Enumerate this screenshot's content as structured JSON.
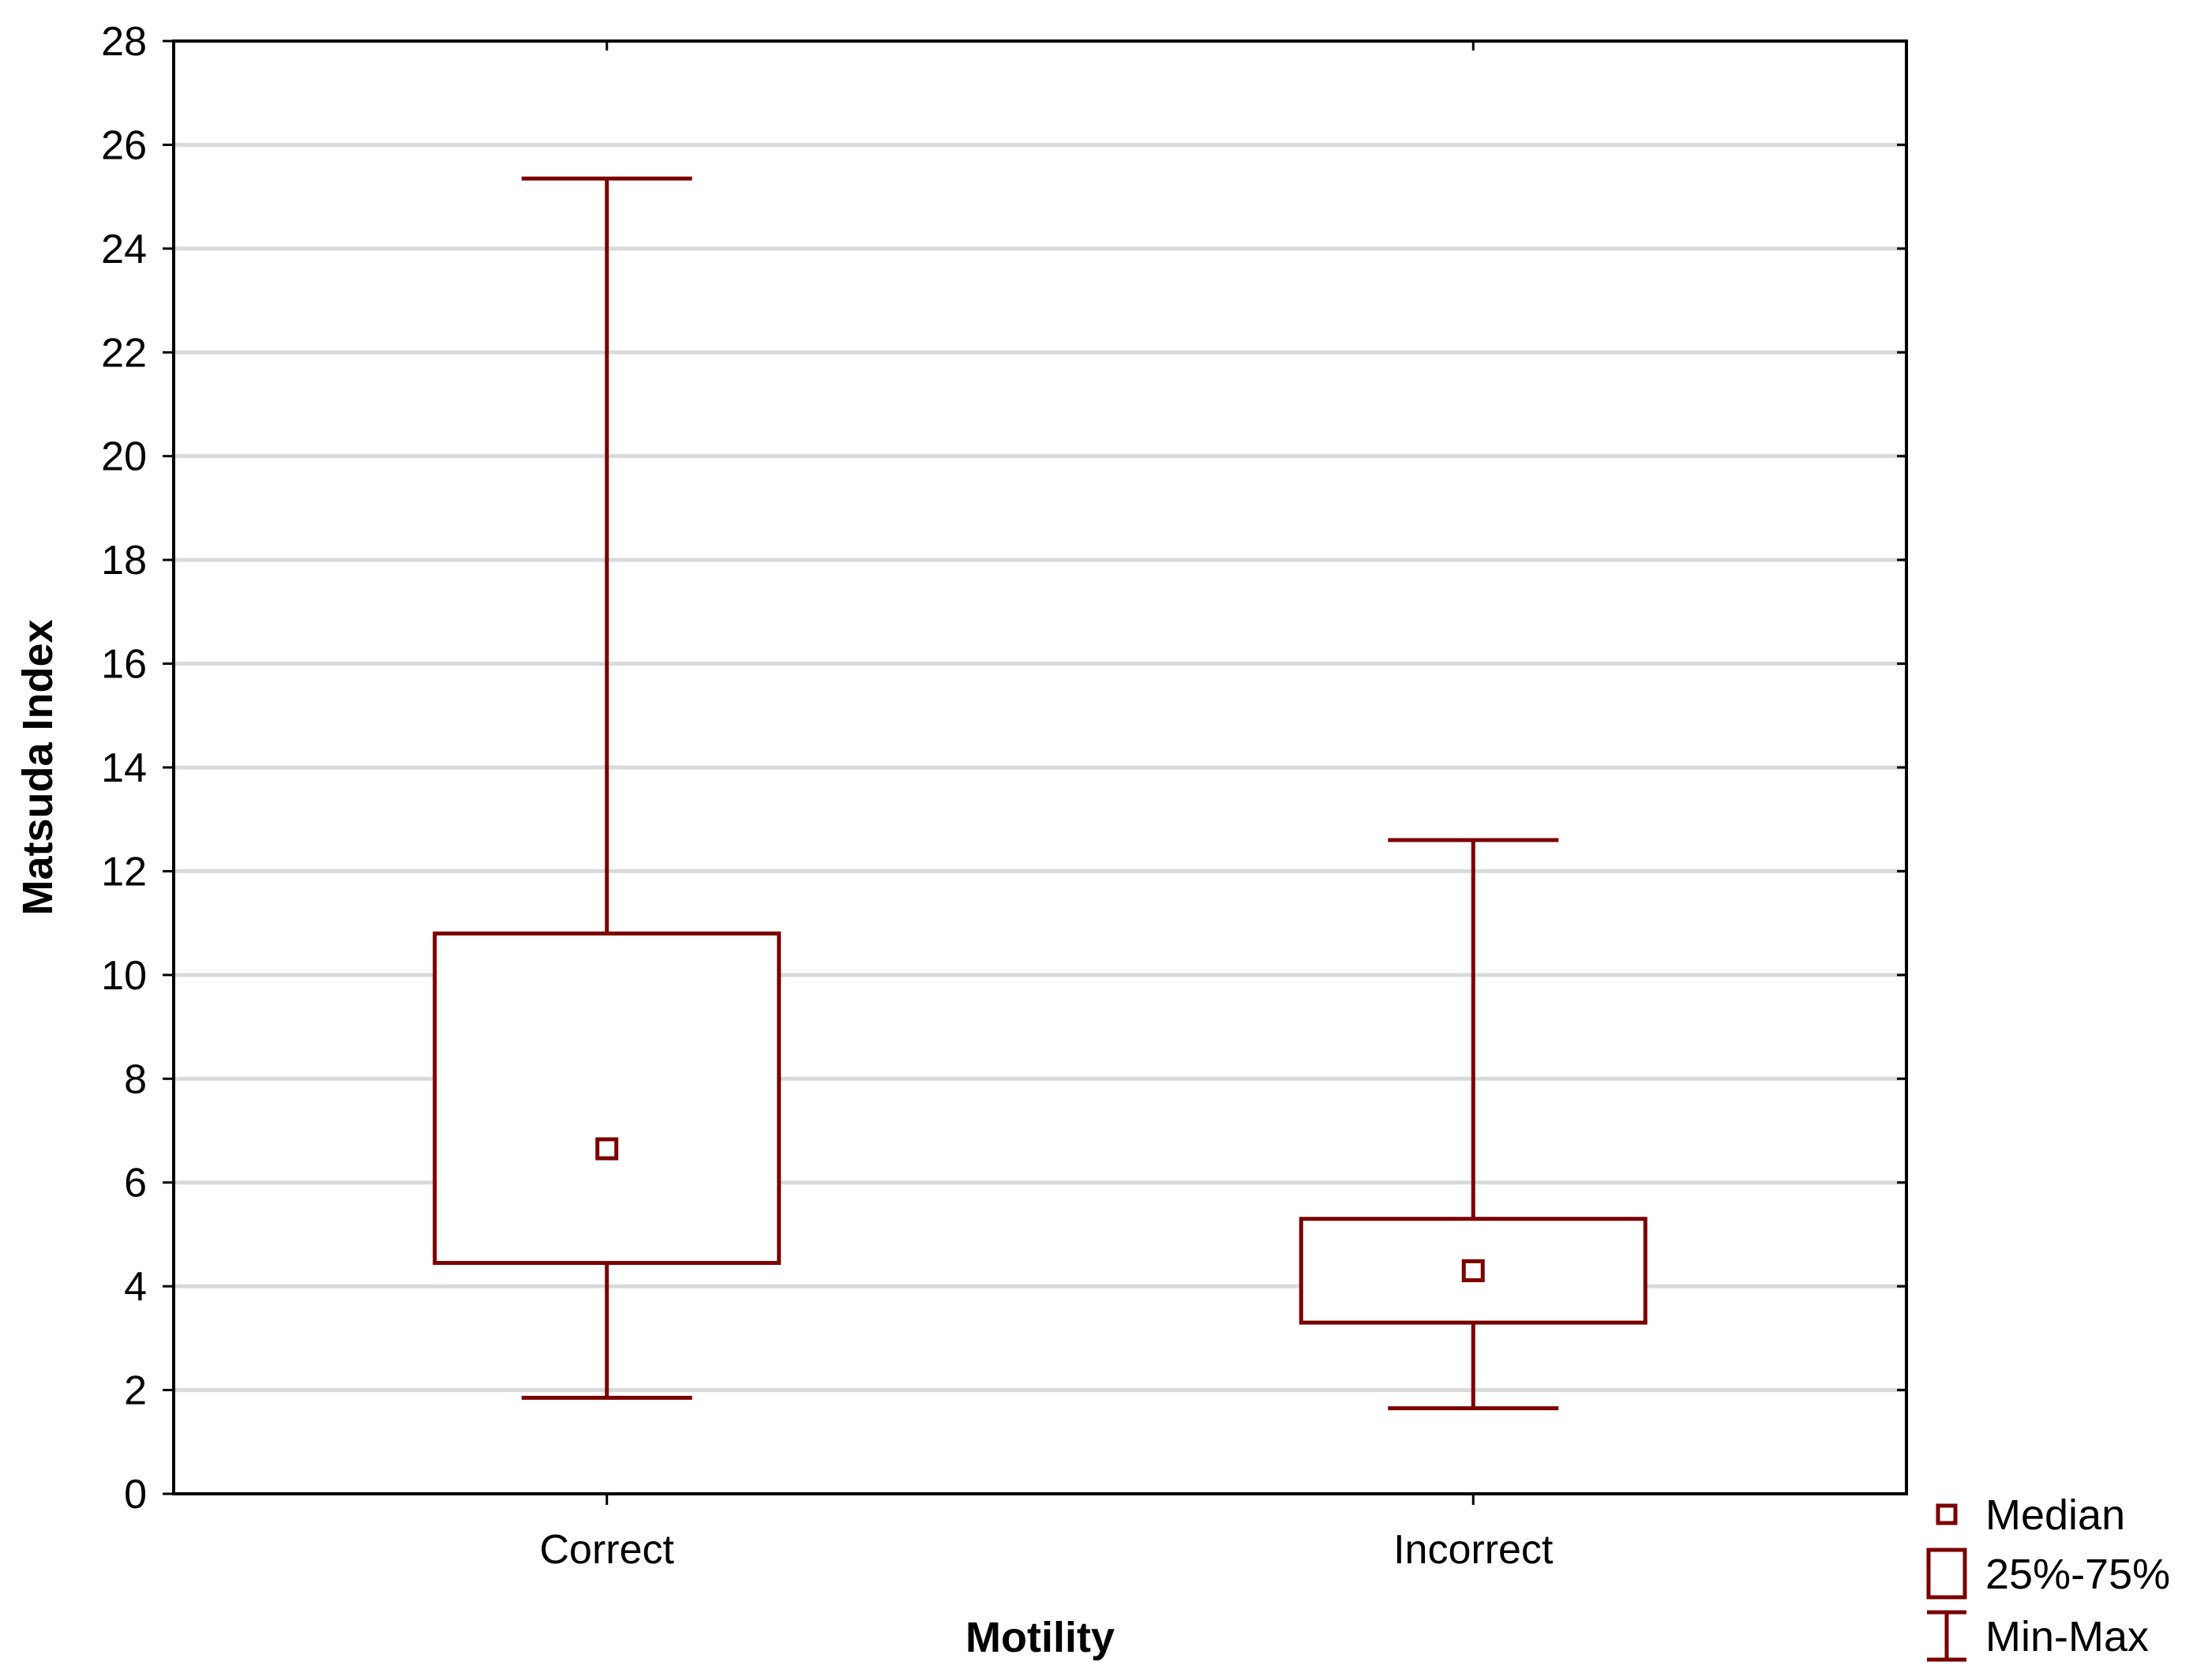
{
  "chart_data": {
    "type": "boxplot",
    "title": "",
    "xlabel": "Motility",
    "ylabel": "Matsuda Index",
    "ylim": [
      0,
      28
    ],
    "yticks": [
      0,
      2,
      4,
      6,
      8,
      10,
      12,
      14,
      16,
      18,
      20,
      22,
      24,
      26,
      28
    ],
    "categories": [
      "Correct",
      "Incorrect"
    ],
    "groups": [
      {
        "category": "Correct",
        "min": 1.85,
        "q1": 4.45,
        "median": 6.65,
        "q3": 10.8,
        "max": 25.35
      },
      {
        "category": "Incorrect",
        "min": 1.65,
        "q1": 3.3,
        "median": 4.3,
        "q3": 5.3,
        "max": 12.6
      }
    ],
    "grid": true,
    "legend": {
      "position": "bottom-right",
      "items": [
        {
          "kind": "median",
          "label": "Median"
        },
        {
          "kind": "box",
          "label": "25%-75%"
        },
        {
          "kind": "whisker",
          "label": "Min-Max"
        }
      ]
    },
    "colors": {
      "mark": "#7b0000",
      "grid": "#d9d9d9",
      "axis": "#000000"
    }
  }
}
